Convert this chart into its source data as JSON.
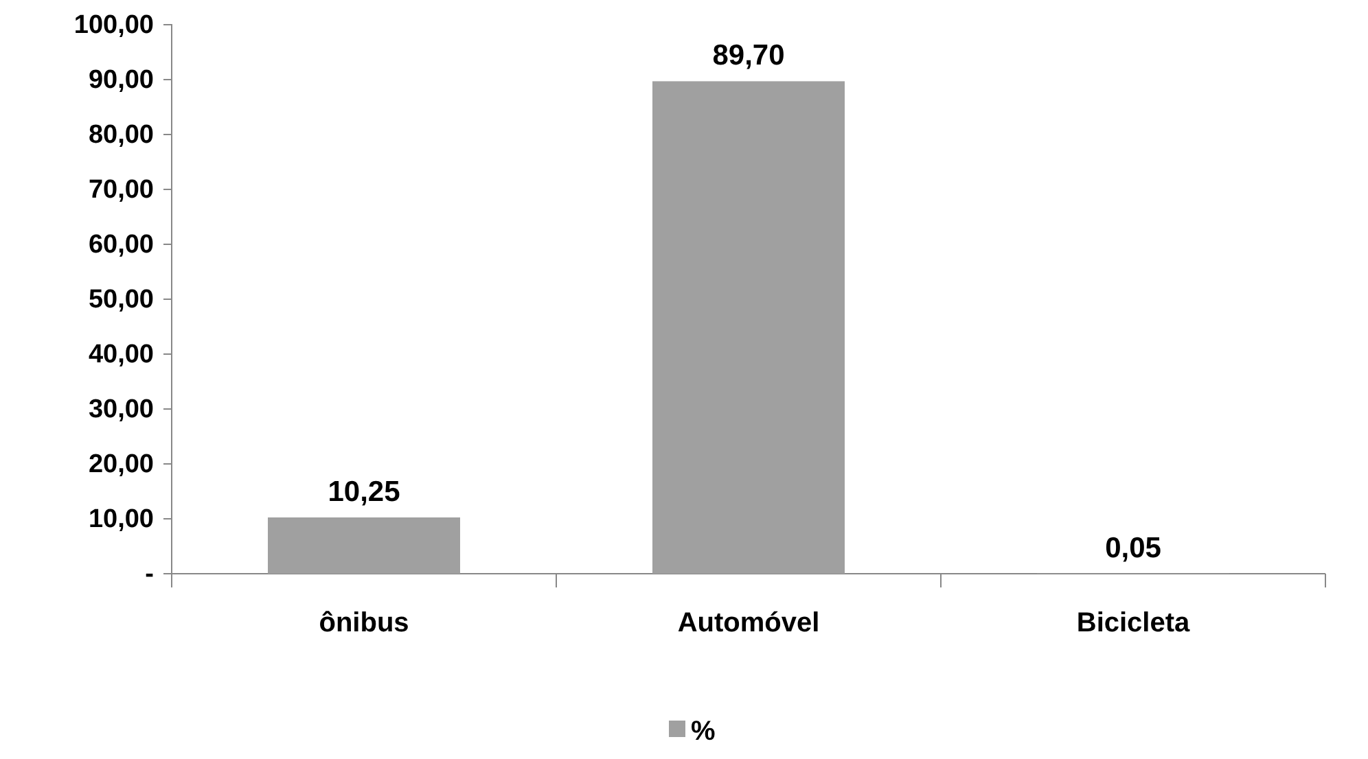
{
  "chart_data": {
    "type": "bar",
    "categories": [
      "ônibus",
      "Automóvel",
      "Bicicleta"
    ],
    "series": [
      {
        "name": "%",
        "color": "#a0a0a0",
        "values": [
          10.25,
          89.7,
          0.05
        ],
        "value_labels": [
          "10,25",
          "89,70",
          "0,05"
        ]
      }
    ],
    "ylim": [
      0,
      100
    ],
    "yticks": [
      {
        "value": 0,
        "label": "-"
      },
      {
        "value": 10,
        "label": "10,00"
      },
      {
        "value": 20,
        "label": "20,00"
      },
      {
        "value": 30,
        "label": "30,00"
      },
      {
        "value": 40,
        "label": "40,00"
      },
      {
        "value": 50,
        "label": "50,00"
      },
      {
        "value": 60,
        "label": "60,00"
      },
      {
        "value": 70,
        "label": "70,00"
      },
      {
        "value": 80,
        "label": "80,00"
      },
      {
        "value": 90,
        "label": "90,00"
      },
      {
        "value": 100,
        "label": "100,00"
      }
    ],
    "grid": false,
    "legend": "bottom"
  }
}
